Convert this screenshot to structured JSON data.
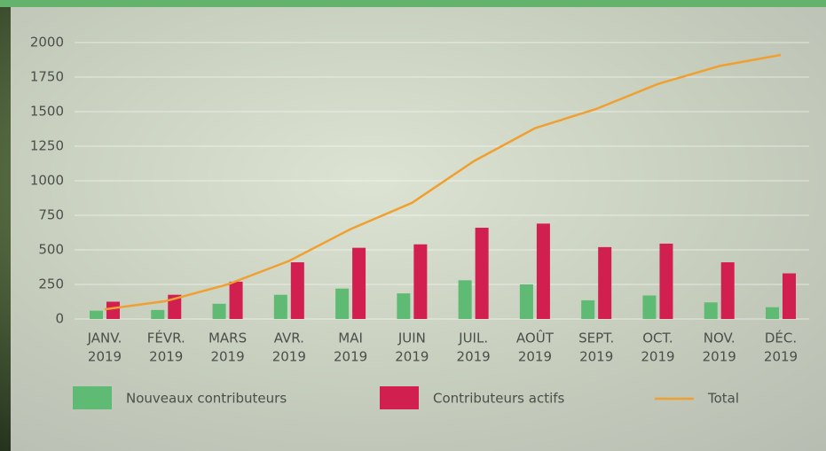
{
  "chart_data": {
    "type": "bar-line",
    "categories": [
      [
        "JANV.",
        "2019"
      ],
      [
        "FÉVR.",
        "2019"
      ],
      [
        "MARS",
        "2019"
      ],
      [
        "AVR.",
        "2019"
      ],
      [
        "MAI",
        "2019"
      ],
      [
        "JUIN",
        "2019"
      ],
      [
        "JUIL.",
        "2019"
      ],
      [
        "AOÛT",
        "2019"
      ],
      [
        "SEPT.",
        "2019"
      ],
      [
        "OCT.",
        "2019"
      ],
      [
        "NOV.",
        "2019"
      ],
      [
        "DÉC.",
        "2019"
      ]
    ],
    "series": [
      {
        "name": "Nouveaux contributeurs",
        "type": "bar",
        "color": "#5fbb74",
        "values": [
          60,
          65,
          110,
          175,
          220,
          185,
          280,
          250,
          135,
          170,
          120,
          85
        ]
      },
      {
        "name": "Contributeurs actifs",
        "type": "bar",
        "color": "#d11f4f",
        "values": [
          125,
          175,
          270,
          410,
          515,
          540,
          660,
          690,
          520,
          545,
          410,
          330
        ]
      },
      {
        "name": "Total",
        "type": "line",
        "color": "#f0a030",
        "values": [
          70,
          130,
          250,
          420,
          650,
          840,
          1140,
          1380,
          1520,
          1700,
          1830,
          1910
        ]
      }
    ],
    "ylim": [
      0,
      2000
    ],
    "yticks": [
      0,
      250,
      500,
      750,
      1000,
      1250,
      1500,
      1750,
      2000
    ],
    "grid": true,
    "legend": "bottom"
  }
}
